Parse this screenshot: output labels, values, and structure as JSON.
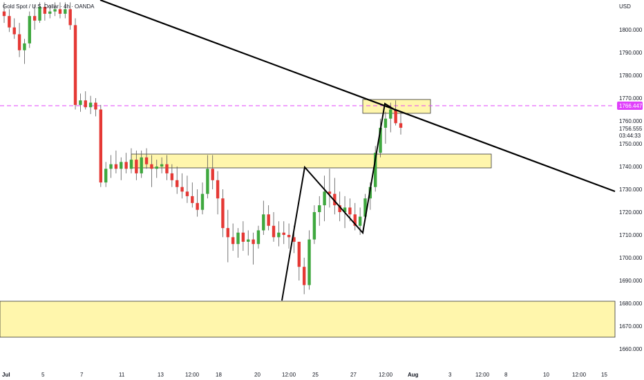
{
  "header": {
    "symbol_title": "Gold Spot / U.S. Dollar, 4h, OANDA",
    "title_visible": "Gold Spot / U.S. Dollar · 4h · OANDA"
  },
  "chart_data": {
    "type": "candlestick",
    "symbol": "Gold Spot / U.S. Dollar",
    "interval": "4h",
    "source": "OANDA",
    "currency": "USD",
    "y_axis": {
      "min": 1657,
      "max": 1812,
      "ticks": [
        1660,
        1670,
        1680,
        1690,
        1700,
        1710,
        1720,
        1730,
        1740,
        1750,
        1760,
        1770,
        1780,
        1790,
        1800
      ],
      "tick_labels": [
        "1660.000",
        "1670.000",
        "1680.000",
        "1690.000",
        "1700.000",
        "1710.000",
        "1720.000",
        "1730.000",
        "1740.000",
        "1750.000",
        "1760.000",
        "1770.000",
        "1780.000",
        "1790.000",
        "1800.000"
      ]
    },
    "x_axis_labels": [
      "Jul",
      "5",
      "7",
      "11",
      "13",
      "12:00",
      "18",
      "20",
      "12:00",
      "25",
      "27",
      "12:00",
      "Aug",
      "3",
      "12:00",
      "8",
      "10",
      "12:00",
      "15"
    ],
    "price_labels": {
      "horizontal_line_value": "1766.447",
      "last_price": "1756.555",
      "countdown": "03:44:33"
    },
    "colors": {
      "up": "#26a69a",
      "up_body": "#3fa83f",
      "down": "#e53935",
      "zone_fill": "#fff59d",
      "zone_stroke": "#333333",
      "trendline": "#000000",
      "hline": "#e040fb",
      "hline_label_bg": "#e040fb"
    },
    "candles_ohlc": [
      [
        1808,
        1812,
        1803,
        1806
      ],
      [
        1806,
        1809,
        1799,
        1801
      ],
      [
        1801,
        1805,
        1796,
        1798
      ],
      [
        1798,
        1803,
        1788,
        1791
      ],
      [
        1791,
        1796,
        1785,
        1794
      ],
      [
        1794,
        1808,
        1792,
        1806
      ],
      [
        1806,
        1811,
        1800,
        1804
      ],
      [
        1804,
        1812,
        1803,
        1810
      ],
      [
        1810,
        1812,
        1804,
        1807
      ],
      [
        1807,
        1811,
        1805,
        1808
      ],
      [
        1808,
        1812,
        1806,
        1809
      ],
      [
        1809,
        1812,
        1805,
        1807
      ],
      [
        1807,
        1812,
        1805,
        1809
      ],
      [
        1809,
        1812,
        1800,
        1802
      ],
      [
        1802,
        1805,
        1765,
        1767
      ],
      [
        1767,
        1772,
        1764,
        1769
      ],
      [
        1769,
        1773,
        1765,
        1766
      ],
      [
        1766,
        1771,
        1763,
        1768
      ],
      [
        1768,
        1770,
        1762,
        1765
      ],
      [
        1765,
        1767,
        1731,
        1733
      ],
      [
        1733,
        1742,
        1731,
        1739
      ],
      [
        1739,
        1745,
        1735,
        1741
      ],
      [
        1741,
        1747,
        1737,
        1739
      ],
      [
        1739,
        1744,
        1734,
        1742
      ],
      [
        1742,
        1746,
        1737,
        1739
      ],
      [
        1739,
        1748,
        1737,
        1743
      ],
      [
        1743,
        1747,
        1734,
        1737
      ],
      [
        1737,
        1747,
        1735,
        1744
      ],
      [
        1744,
        1748,
        1739,
        1741
      ],
      [
        1741,
        1745,
        1731,
        1739
      ],
      [
        1739,
        1743,
        1735,
        1740
      ],
      [
        1740,
        1744,
        1737,
        1741
      ],
      [
        1741,
        1745,
        1734,
        1737
      ],
      [
        1737,
        1741,
        1731,
        1734
      ],
      [
        1734,
        1740,
        1728,
        1731
      ],
      [
        1731,
        1737,
        1726,
        1729
      ],
      [
        1729,
        1736,
        1724,
        1727
      ],
      [
        1727,
        1733,
        1722,
        1724
      ],
      [
        1724,
        1730,
        1718,
        1721
      ],
      [
        1721,
        1733,
        1719,
        1728
      ],
      [
        1728,
        1745,
        1726,
        1739
      ],
      [
        1739,
        1745,
        1730,
        1734
      ],
      [
        1734,
        1738,
        1719,
        1726
      ],
      [
        1726,
        1730,
        1709,
        1713
      ],
      [
        1713,
        1721,
        1698,
        1709
      ],
      [
        1709,
        1715,
        1703,
        1706
      ],
      [
        1706,
        1713,
        1700,
        1711
      ],
      [
        1711,
        1716,
        1703,
        1707
      ],
      [
        1707,
        1712,
        1701,
        1708
      ],
      [
        1708,
        1711,
        1697,
        1706
      ],
      [
        1706,
        1714,
        1704,
        1712
      ],
      [
        1712,
        1725,
        1710,
        1719
      ],
      [
        1719,
        1723,
        1712,
        1714
      ],
      [
        1714,
        1720,
        1707,
        1709
      ],
      [
        1709,
        1716,
        1705,
        1711
      ],
      [
        1711,
        1716,
        1706,
        1710
      ],
      [
        1710,
        1715,
        1704,
        1709
      ],
      [
        1709,
        1714,
        1702,
        1707
      ],
      [
        1707,
        1701,
        1690,
        1696
      ],
      [
        1696,
        1700,
        1684,
        1688
      ],
      [
        1688,
        1712,
        1686,
        1708
      ],
      [
        1708,
        1723,
        1706,
        1720
      ],
      [
        1720,
        1727,
        1714,
        1723
      ],
      [
        1723,
        1736,
        1716,
        1729
      ],
      [
        1729,
        1739,
        1722,
        1728
      ],
      [
        1728,
        1735,
        1719,
        1723
      ],
      [
        1723,
        1729,
        1716,
        1720
      ],
      [
        1720,
        1727,
        1713,
        1722
      ],
      [
        1722,
        1726,
        1716,
        1719
      ],
      [
        1719,
        1724,
        1712,
        1714
      ],
      [
        1714,
        1722,
        1710,
        1718
      ],
      [
        1718,
        1728,
        1716,
        1726
      ],
      [
        1726,
        1733,
        1721,
        1731
      ],
      [
        1731,
        1749,
        1729,
        1746
      ],
      [
        1746,
        1761,
        1744,
        1757
      ],
      [
        1757,
        1764,
        1750,
        1761
      ],
      [
        1761,
        1768,
        1755,
        1765
      ],
      [
        1765,
        1769,
        1758,
        1759
      ],
      [
        1759,
        1764,
        1754,
        1757
      ]
    ],
    "zones": [
      {
        "name": "top-resistance-zone",
        "y_top": 1770,
        "y_bottom": 1764
      },
      {
        "name": "mid-zone",
        "y_top": 1745.5,
        "y_bottom": 1739.5
      },
      {
        "name": "bottom-support-zone",
        "y_top": 1681,
        "y_bottom": 1665
      }
    ],
    "horizontal_line": 1766.447
  }
}
